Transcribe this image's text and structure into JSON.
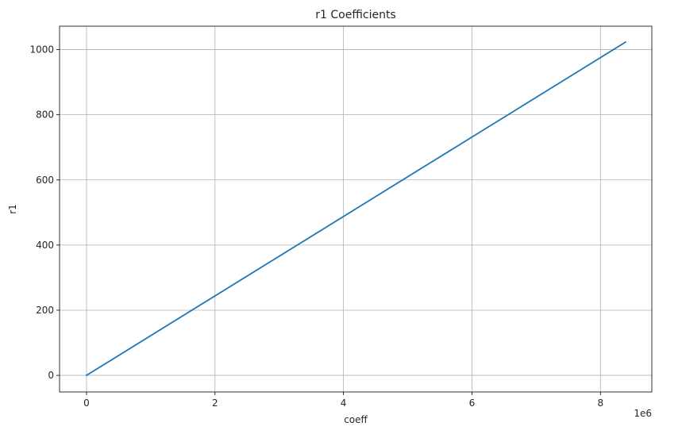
{
  "chart_data": {
    "type": "line",
    "title": "r1 Coefficients",
    "xlabel": "coeff",
    "ylabel": "r1",
    "x_offset_text": "1e6",
    "xlim": [
      -0.42,
      8.8
    ],
    "ylim": [
      -51,
      1072
    ],
    "x_ticks": [
      0,
      2,
      4,
      6,
      8
    ],
    "x_tick_labels": [
      "0",
      "2",
      "4",
      "6",
      "8"
    ],
    "y_ticks": [
      0,
      200,
      400,
      600,
      800,
      1000
    ],
    "y_tick_labels": [
      "0",
      "200",
      "400",
      "600",
      "800",
      "1000"
    ],
    "grid": true,
    "series": [
      {
        "color": "#1f77b4",
        "x": [
          0,
          8.39
        ],
        "y": [
          0,
          1023
        ]
      }
    ]
  }
}
